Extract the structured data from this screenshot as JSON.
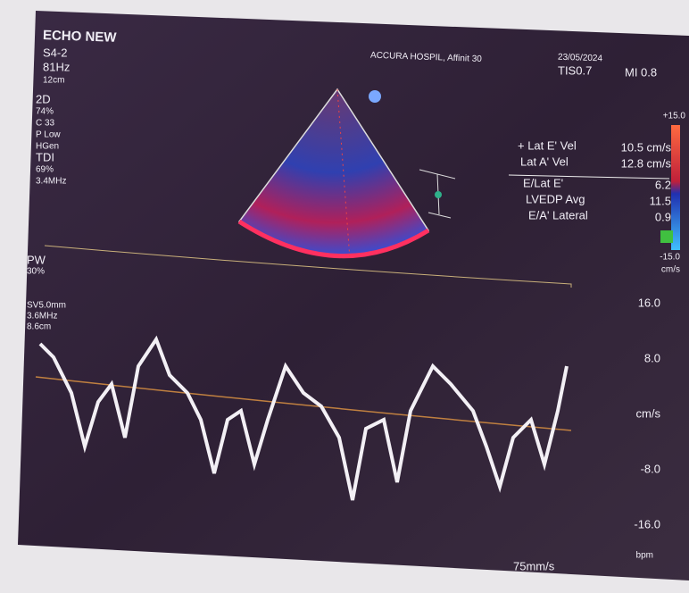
{
  "header": {
    "brand": "ECHO NEW",
    "probe": "S4-2",
    "frame_rate": "81Hz",
    "depth": "12cm",
    "hospital": "ACCURA HOSPIL, Affinit 30",
    "date": "23/05/2024",
    "tis": "TIS0.7",
    "mi": "MI 0.8"
  },
  "left_params": [
    "2D",
    "74%",
    "C 33",
    "P Low",
    "HGen",
    "TDI",
    "69%",
    "3.4MHz"
  ],
  "pw_params": [
    "PW",
    "30%",
    "SV5.0mm",
    "3.6MHz",
    "8.6cm"
  ],
  "measurements": [
    {
      "label": "+ Lat E' Vel",
      "value": "10.5 cm/s"
    },
    {
      "label": "Lat A' Vel",
      "value": "12.8 cm/s"
    },
    {
      "label": "E/Lat E'",
      "value": "6.2"
    },
    {
      "label": "LVEDP Avg",
      "value": "11.5"
    },
    {
      "label": "E/A' Lateral",
      "value": "0.9"
    }
  ],
  "color_scale": {
    "top": "+15.0",
    "bottom": "-15.0",
    "unit": "cm/s"
  },
  "velocity_scale": [
    "16.0",
    "8.0",
    "cm/s",
    "-8.0",
    "-16.0"
  ],
  "sweep": "75mm/s",
  "hr_unit": "bpm"
}
